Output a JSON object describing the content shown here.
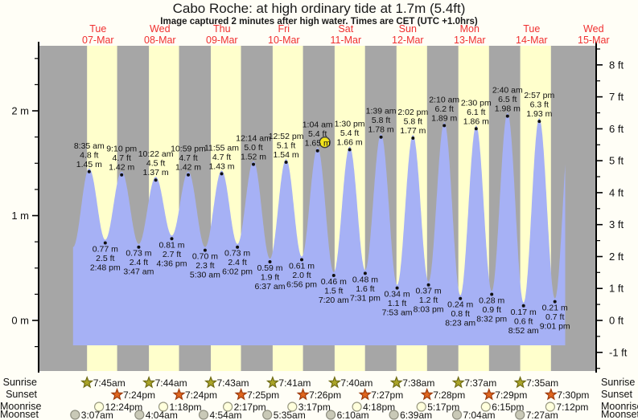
{
  "title": "Cabo Roche: at high  ordinary tide at 1.7m (5.4ft)",
  "subtitle": "Image captured 2 minutes after high water. Times are CET (UTC +1.0hrs)",
  "chart_data": {
    "type": "area",
    "x_axis": {
      "days": [
        {
          "weekday": "Tue",
          "date": "07-Mar"
        },
        {
          "weekday": "Wed",
          "date": "08-Mar"
        },
        {
          "weekday": "Thu",
          "date": "09-Mar"
        },
        {
          "weekday": "Fri",
          "date": "10-Mar"
        },
        {
          "weekday": "Sat",
          "date": "11-Mar"
        },
        {
          "weekday": "Sun",
          "date": "12-Mar"
        },
        {
          "weekday": "Mon",
          "date": "13-Mar"
        },
        {
          "weekday": "Tue",
          "date": "14-Mar"
        },
        {
          "weekday": "Wed",
          "date": "15-Mar"
        }
      ]
    },
    "y_axis_left": {
      "unit": "m",
      "ticks": [
        {
          "value": 0,
          "label": "0 m"
        },
        {
          "value": 1,
          "label": "1 m"
        },
        {
          "value": 2,
          "label": "2 m"
        }
      ],
      "minor_step_m": 0.25
    },
    "y_axis_right": {
      "unit": "ft",
      "ticks": [
        {
          "value": -1,
          "label": "-1 ft"
        },
        {
          "value": 0,
          "label": "0 ft"
        },
        {
          "value": 1,
          "label": "1 ft"
        },
        {
          "value": 2,
          "label": "2 ft"
        },
        {
          "value": 3,
          "label": "3 ft"
        },
        {
          "value": 4,
          "label": "4 ft"
        },
        {
          "value": 5,
          "label": "5 ft"
        },
        {
          "value": 6,
          "label": "6 ft"
        },
        {
          "value": 7,
          "label": "7 ft"
        },
        {
          "value": 8,
          "label": "8 ft"
        }
      ],
      "minor_step_ft": 0.5
    },
    "highs": [
      {
        "date": "07-Mar",
        "time": "8:35 am",
        "ft": "4.8",
        "m": "1.45"
      },
      {
        "date": "07-Mar",
        "time": "9:10 pm",
        "ft": "4.7",
        "m": "1.42"
      },
      {
        "date": "08-Mar",
        "time": "10:22 am",
        "ft": "4.5",
        "m": "1.37"
      },
      {
        "date": "08-Mar",
        "time": "10:59 pm",
        "ft": "4.7",
        "m": "1.42"
      },
      {
        "date": "09-Mar",
        "time": "11:55 am",
        "ft": "4.7",
        "m": "1.43"
      },
      {
        "date": "10-Mar",
        "time": "12:14 am",
        "ft": "5.0",
        "m": "1.52"
      },
      {
        "date": "10-Mar",
        "time": "12:52 pm",
        "ft": "5.1",
        "m": "1.54"
      },
      {
        "date": "11-Mar",
        "time": "1:04 am",
        "ft": "5.4",
        "m": "1.65"
      },
      {
        "date": "11-Mar",
        "time": "1:30 pm",
        "ft": "5.4",
        "m": "1.66"
      },
      {
        "date": "12-Mar",
        "time": "1:39 am",
        "ft": "5.8",
        "m": "1.78"
      },
      {
        "date": "12-Mar",
        "time": "2:02 pm",
        "ft": "5.8",
        "m": "1.77"
      },
      {
        "date": "13-Mar",
        "time": "2:10 am",
        "ft": "6.2",
        "m": "1.89"
      },
      {
        "date": "13-Mar",
        "time": "2:30 pm",
        "ft": "6.1",
        "m": "1.86"
      },
      {
        "date": "14-Mar",
        "time": "2:40 am",
        "ft": "6.5",
        "m": "1.98"
      },
      {
        "date": "14-Mar",
        "time": "2:57 pm",
        "ft": "6.3",
        "m": "1.93"
      }
    ],
    "lows": [
      {
        "date": "07-Mar",
        "time": "2:48 pm",
        "ft": "2.5",
        "m": "0.77"
      },
      {
        "date": "08-Mar",
        "time": "3:47 am",
        "ft": "2.4",
        "m": "0.73"
      },
      {
        "date": "08-Mar",
        "time": "4:36 pm",
        "ft": "2.7",
        "m": "0.81"
      },
      {
        "date": "09-Mar",
        "time": "5:30 am",
        "ft": "2.3",
        "m": "0.70"
      },
      {
        "date": "09-Mar",
        "time": "6:02 pm",
        "ft": "2.4",
        "m": "0.73"
      },
      {
        "date": "10-Mar",
        "time": "6:37 am",
        "ft": "1.9",
        "m": "0.59"
      },
      {
        "date": "10-Mar",
        "time": "6:56 pm",
        "ft": "2.0",
        "m": "0.61"
      },
      {
        "date": "11-Mar",
        "time": "7:20 am",
        "ft": "1.5",
        "m": "0.46"
      },
      {
        "date": "11-Mar",
        "time": "7:31 pm",
        "ft": "1.6",
        "m": "0.48"
      },
      {
        "date": "12-Mar",
        "time": "7:53 am",
        "ft": "1.1",
        "m": "0.34"
      },
      {
        "date": "12-Mar",
        "time": "8:03 pm",
        "ft": "1.2",
        "m": "0.37"
      },
      {
        "date": "13-Mar",
        "time": "8:23 am",
        "ft": "0.8",
        "m": "0.24"
      },
      {
        "date": "13-Mar",
        "time": "8:32 pm",
        "ft": "0.9",
        "m": "0.28"
      },
      {
        "date": "14-Mar",
        "time": "8:52 am",
        "ft": "0.6",
        "m": "0.17"
      },
      {
        "date": "14-Mar",
        "time": "9:01 pm",
        "ft": "0.7",
        "m": "0.21"
      }
    ],
    "highlight": {
      "date": "11-Mar",
      "time": "1:04 am"
    },
    "curve_start": {
      "date": "07-Mar",
      "time": "2:20 am",
      "m": 0.7
    },
    "curve_end_virtual": {
      "date": "15-Mar",
      "time": "3:10 am",
      "m": 1.98
    },
    "curve_clip_end": {
      "date": "15-Mar",
      "time": "1:00 am"
    },
    "baseline_m": -0.24
  },
  "astro": {
    "rows": [
      {
        "id": "sunrise",
        "label": "Sunrise",
        "icon": "sunrise-star-icon",
        "events": [
          {
            "date": "07-Mar",
            "time": "7:45am"
          },
          {
            "date": "08-Mar",
            "time": "7:44am"
          },
          {
            "date": "09-Mar",
            "time": "7:43am"
          },
          {
            "date": "10-Mar",
            "time": "7:41am"
          },
          {
            "date": "11-Mar",
            "time": "7:40am"
          },
          {
            "date": "12-Mar",
            "time": "7:38am"
          },
          {
            "date": "13-Mar",
            "time": "7:37am"
          },
          {
            "date": "14-Mar",
            "time": "7:35am"
          }
        ]
      },
      {
        "id": "sunset",
        "label": "Sunset",
        "icon": "sunset-star-icon",
        "events": [
          {
            "date": "07-Mar",
            "time": "7:24pm"
          },
          {
            "date": "08-Mar",
            "time": "7:24pm"
          },
          {
            "date": "09-Mar",
            "time": "7:25pm"
          },
          {
            "date": "10-Mar",
            "time": "7:26pm"
          },
          {
            "date": "11-Mar",
            "time": "7:27pm"
          },
          {
            "date": "12-Mar",
            "time": "7:28pm"
          },
          {
            "date": "13-Mar",
            "time": "7:29pm"
          },
          {
            "date": "14-Mar",
            "time": "7:30pm"
          }
        ]
      },
      {
        "id": "moonrise",
        "label": "Moonrise",
        "icon": "moonrise-circle-icon",
        "events": [
          {
            "date": "07-Mar",
            "time": "12:24pm"
          },
          {
            "date": "08-Mar",
            "time": "1:18pm"
          },
          {
            "date": "09-Mar",
            "time": "2:17pm"
          },
          {
            "date": "10-Mar",
            "time": "3:17pm"
          },
          {
            "date": "11-Mar",
            "time": "4:18pm"
          },
          {
            "date": "12-Mar",
            "time": "5:17pm"
          },
          {
            "date": "13-Mar",
            "time": "6:15pm"
          },
          {
            "date": "14-Mar",
            "time": "7:12pm"
          }
        ]
      },
      {
        "id": "moonset",
        "label": "Moonset",
        "icon": "moonset-circle-icon",
        "events": [
          {
            "date": "07-Mar",
            "time": "3:07am"
          },
          {
            "date": "08-Mar",
            "time": "4:04am"
          },
          {
            "date": "09-Mar",
            "time": "4:54am"
          },
          {
            "date": "10-Mar",
            "time": "5:35am"
          },
          {
            "date": "11-Mar",
            "time": "6:10am"
          },
          {
            "date": "12-Mar",
            "time": "6:39am"
          },
          {
            "date": "13-Mar",
            "time": "7:04am"
          },
          {
            "date": "14-Mar",
            "time": "7:27am"
          }
        ]
      }
    ]
  },
  "colors": {
    "background": "#fffef6",
    "night_gray": "#a6a6a6",
    "day_yellow": "#ffffcc",
    "tide_blue": "#a6b1f5",
    "axis_black": "#000000",
    "date_red": "#f03030",
    "label_black": "#111111",
    "highlight_fill": "#f2e41c",
    "highlight_ring": "#3c3c3c",
    "sunrise_fill": "#aaa428",
    "sunrise_stroke": "#6e6a14",
    "sunset_fill": "#e0661e",
    "sunset_stroke": "#9c3a0c",
    "moonrise_fill": "#ffffdc",
    "moonrise_stroke": "#97977f",
    "moonset_fill": "#c9c9b7",
    "moonset_stroke": "#8f8f80"
  }
}
